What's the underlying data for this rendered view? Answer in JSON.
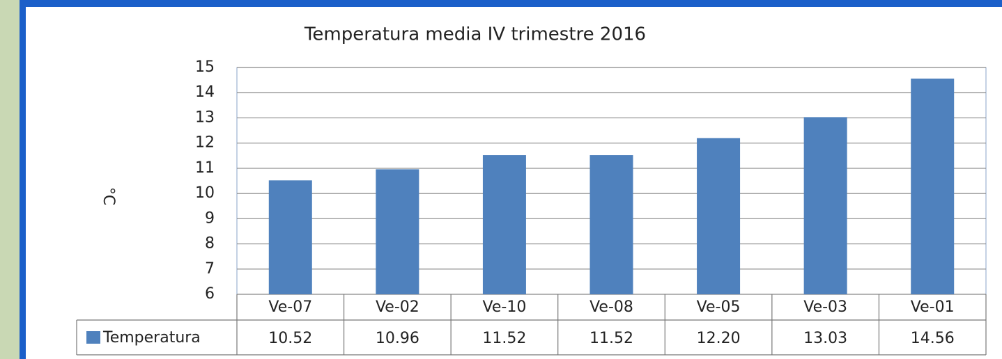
{
  "chart_data": {
    "type": "bar",
    "title": "Temperatura media IV trimestre 2016",
    "y_label": "°C",
    "categories": [
      "Ve-07",
      "Ve-02",
      "Ve-10",
      "Ve-08",
      "Ve-05",
      "Ve-03",
      "Ve-01"
    ],
    "series": [
      {
        "name": "Temperatura",
        "color": "#4f81bd",
        "values": [
          10.52,
          10.96,
          11.52,
          11.52,
          12.2,
          13.03,
          14.56
        ],
        "value_labels": [
          "10.52",
          "10.96",
          "11.52",
          "11.52",
          "12.20",
          "13.03",
          "14.56"
        ]
      }
    ],
    "ylim": [
      6,
      15
    ],
    "yticks": [
      6,
      7,
      8,
      9,
      10,
      11,
      12,
      13,
      14,
      15
    ],
    "grid": true
  }
}
